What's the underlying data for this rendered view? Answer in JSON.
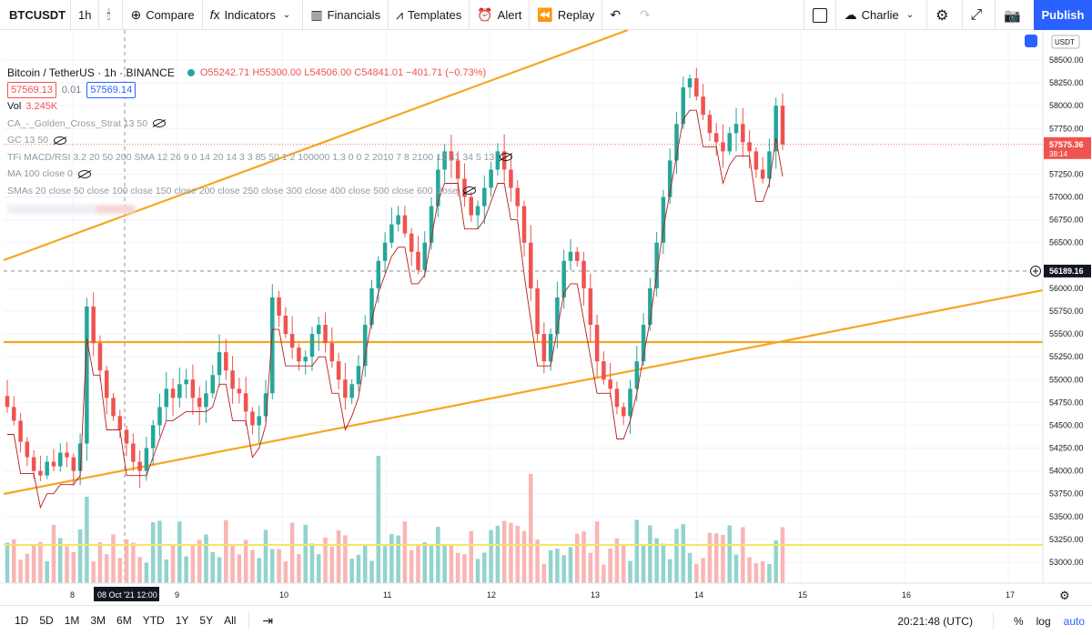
{
  "toolbar": {
    "symbol": "BTCUSDT",
    "interval": "1h",
    "compare": "Compare",
    "indicators": "Indicators",
    "financials": "Financials",
    "templates": "Templates",
    "alert": "Alert",
    "replay": "Replay",
    "layout_name": "Charlie",
    "publish": "Publish"
  },
  "legend": {
    "title": "Bitcoin / TetherUS · 1h · BINANCE",
    "ohlc": "O55242.71 H55300.00 L54506.00 C54841.01 −401.71 (−0.73%)",
    "bid": "57569.13",
    "step": "0.01",
    "ask": "57569.14",
    "vol_label": "Vol",
    "vol_value": "3.245K",
    "indicators": [
      "CA_-_Golden_Cross_Strat 13 50",
      "GC 13 50",
      "TFi MACD/RSI 3.2 20 50 200 SMA 12 26 9 0 14 20 14 3 3 85 50 1 2 100000 1.3 0 0 2 2010 7 8 2100 12 31 34 5 13",
      "MA 100 close 0",
      "SMAs 20 close 50 close 100 close 150 close 200 close 250 close 300 close 400 close 500 close 600 close"
    ]
  },
  "price_axis": {
    "currency": "USDT",
    "labels": [
      "58500.00",
      "58250.00",
      "58000.00",
      "57750.00",
      "57250.00",
      "57000.00",
      "56750.00",
      "56500.00",
      "56000.00",
      "55750.00",
      "55500.00",
      "55250.00",
      "55000.00",
      "54750.00",
      "54500.00",
      "54250.00",
      "54000.00",
      "53750.00",
      "53500.00",
      "53250.00",
      "53000.00"
    ],
    "last_price": "57575.36",
    "countdown": "38:14",
    "crosshair_price": "56189.16"
  },
  "time_axis": {
    "labels": [
      "8",
      "9",
      "10",
      "11",
      "12",
      "13",
      "14",
      "15",
      "16",
      "17"
    ],
    "crosshair_time": "08 Oct '21  12:00"
  },
  "bottombar": {
    "timeframes": [
      "1D",
      "5D",
      "1M",
      "3M",
      "6M",
      "YTD",
      "1Y",
      "5Y",
      "All"
    ],
    "clock": "20:21:48 (UTC)",
    "percent": "%",
    "log": "log",
    "auto": "auto"
  },
  "colors": {
    "up": "#26a69a",
    "down": "#ef5350",
    "trend": "#f5a623",
    "accent": "#2962ff",
    "volume_line": "#f5e663"
  },
  "chart_data": {
    "type": "candlestick",
    "title": "Bitcoin / TetherUS · 1h · BINANCE",
    "ylim": [
      52800,
      58800
    ],
    "x_ticks": [
      "8",
      "9",
      "10",
      "11",
      "12",
      "13",
      "14",
      "15",
      "16",
      "17"
    ],
    "closes": [
      54700,
      54550,
      54320,
      54150,
      54000,
      53950,
      54100,
      54050,
      54200,
      54150,
      54000,
      54300,
      55800,
      55400,
      55100,
      54800,
      54600,
      54450,
      54300,
      54100,
      54000,
      54250,
      54500,
      54700,
      54900,
      54800,
      54950,
      55000,
      54800,
      54700,
      54850,
      55050,
      55300,
      55100,
      54900,
      54850,
      54650,
      54500,
      54600,
      54850,
      55900,
      55700,
      55500,
      55350,
      55200,
      55250,
      55500,
      55600,
      55400,
      55200,
      55000,
      54800,
      54950,
      55150,
      55600,
      56000,
      56300,
      56500,
      56700,
      56800,
      56600,
      56400,
      56200,
      56500,
      56900,
      57300,
      57500,
      57400,
      57200,
      57000,
      56800,
      56900,
      57100,
      57300,
      57500,
      57300,
      57100,
      56900,
      56500,
      56000,
      55500,
      55200,
      55500,
      55900,
      56300,
      56400,
      56300,
      56000,
      55600,
      55200,
      55000,
      54900,
      54700,
      54600,
      54900,
      55200,
      55600,
      56000,
      56500,
      57000,
      57400,
      57800,
      58200,
      58300,
      58100,
      57900,
      57700,
      57600,
      57500,
      57700,
      57800,
      57600,
      57500,
      57300,
      57200,
      57500,
      58000,
      57575
    ]
  }
}
